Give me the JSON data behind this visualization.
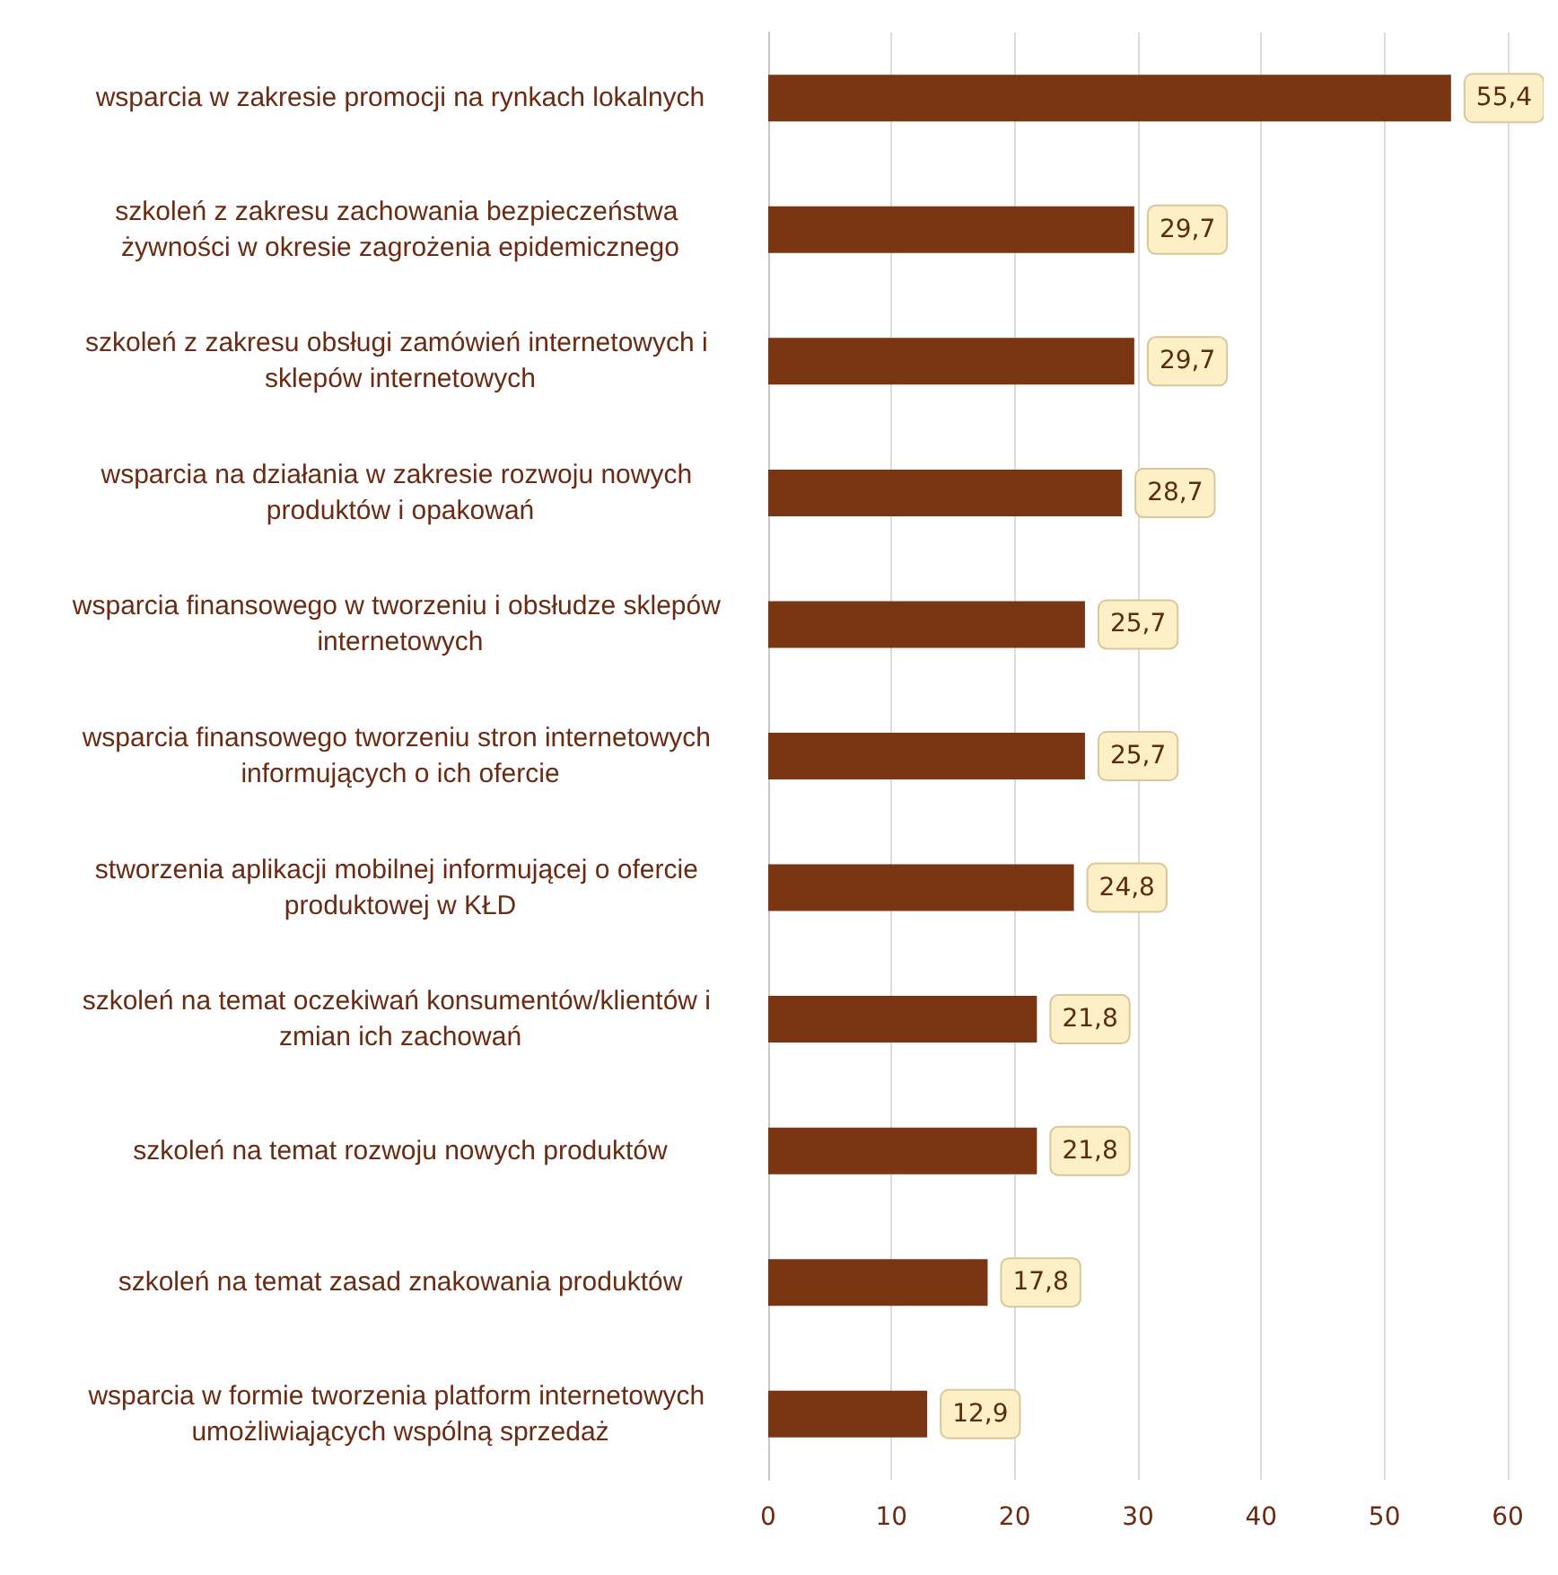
{
  "chart_data": {
    "type": "bar",
    "orientation": "horizontal",
    "categories": [
      "wsparcia w zakresie promocji na rynkach lokalnych",
      "szkoleń z zakresu zachowania bezpieczeństwa żywności w okresie zagrożenia epidemicznego",
      "szkoleń z zakresu obsługi zamówień internetowych i sklepów internetowych",
      "wsparcia na działania w zakresie rozwoju nowych produktów i opakowań",
      "wsparcia finansowego w tworzeniu i obsłudze sklepów internetowych",
      "wsparcia finansowego tworzeniu stron internetowych informujących o ich ofercie",
      "stworzenia aplikacji mobilnej informującej o ofercie produktowej w KŁD",
      "szkoleń na temat oczekiwań konsumentów/klientów i zmian ich zachowań",
      "szkoleń na temat rozwoju nowych produktów",
      "szkoleń na temat zasad znakowania produktów",
      "wsparcia w formie tworzenia platform internetowych umożliwiających wspólną sprzedaż"
    ],
    "values": [
      55.4,
      29.7,
      29.7,
      28.7,
      25.7,
      25.7,
      24.8,
      21.8,
      21.8,
      17.8,
      12.9
    ],
    "value_labels": [
      "55,4",
      "29,7",
      "29,7",
      "28,7",
      "25,7",
      "25,7",
      "24,8",
      "21,8",
      "21,8",
      "17,8",
      "12,9"
    ],
    "color": "#7a3512",
    "xlim": [
      0,
      60
    ],
    "xticks": [
      0,
      10,
      20,
      30,
      40,
      50,
      60
    ],
    "grid": "x"
  }
}
